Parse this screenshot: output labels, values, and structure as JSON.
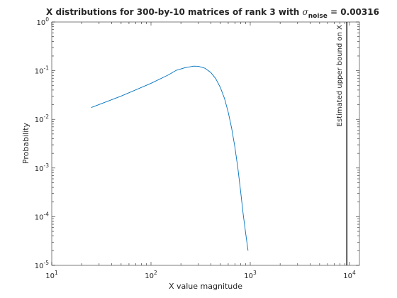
{
  "chart_data": {
    "type": "line",
    "title_main": "X distributions for 300-by-10  matrices of rank 3 with ",
    "title_sigma": "σ",
    "title_sub": "noise",
    "title_tail": " = 0.00316",
    "xlabel": "X value magnitude",
    "ylabel": "Probability",
    "x_scale": "log",
    "y_scale": "log",
    "xlim": [
      10,
      12589
    ],
    "ylim": [
      1e-05,
      1
    ],
    "grid": false,
    "x_ticks": [
      {
        "value": 10,
        "base": "10",
        "exp": "1"
      },
      {
        "value": 100,
        "base": "10",
        "exp": "2"
      },
      {
        "value": 1000,
        "base": "10",
        "exp": "3"
      },
      {
        "value": 10000,
        "base": "10",
        "exp": "4"
      }
    ],
    "y_ticks": [
      {
        "value": 1e-05,
        "base": "10",
        "exp": "-5"
      },
      {
        "value": 0.0001,
        "base": "10",
        "exp": "-4"
      },
      {
        "value": 0.001,
        "base": "10",
        "exp": "-3"
      },
      {
        "value": 0.01,
        "base": "10",
        "exp": "-2"
      },
      {
        "value": 0.1,
        "base": "10",
        "exp": "-1"
      },
      {
        "value": 1,
        "base": "10",
        "exp": "0"
      }
    ],
    "series": [
      {
        "color": "#0072bd",
        "x": [
          25,
          50,
          100,
          150,
          180,
          220,
          270,
          300,
          350,
          400,
          450,
          500,
          550,
          600,
          650,
          700,
          750,
          800,
          850,
          900,
          950
        ],
        "y": [
          0.0175,
          0.03,
          0.055,
          0.082,
          0.102,
          0.115,
          0.124,
          0.123,
          0.112,
          0.092,
          0.068,
          0.045,
          0.027,
          0.014,
          0.0065,
          0.0027,
          0.001,
          0.00033,
          0.00011,
          4.5e-05,
          2e-05
        ]
      }
    ],
    "annotations": [
      {
        "type": "vline",
        "x": 9400,
        "color": "#000000",
        "label": "Estimated upper bound on X"
      }
    ]
  }
}
